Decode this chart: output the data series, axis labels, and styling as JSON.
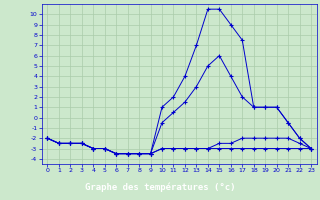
{
  "xlabel": "Graphe des températures (°c)",
  "hours": [
    0,
    1,
    2,
    3,
    4,
    5,
    6,
    7,
    8,
    9,
    10,
    11,
    12,
    13,
    14,
    15,
    16,
    17,
    18,
    19,
    20,
    21,
    22,
    23
  ],
  "line_main": [
    -2,
    -2.5,
    -2.5,
    -2.5,
    -3,
    -3,
    -3.5,
    -3.5,
    -3.5,
    -3.5,
    1,
    2,
    4,
    7,
    10.5,
    10.5,
    9,
    7.5,
    1,
    1,
    1,
    -0.5,
    -2,
    -3
  ],
  "line_upper": [
    -2,
    -2.5,
    -2.5,
    -2.5,
    -3,
    -3,
    -3.5,
    -3.5,
    -3.5,
    -3.5,
    -0.5,
    0.5,
    1.5,
    3,
    5,
    6,
    4,
    2,
    1,
    1,
    1,
    -0.5,
    -2,
    -3
  ],
  "line_lower": [
    -2,
    -2.5,
    -2.5,
    -2.5,
    -3,
    -3,
    -3.5,
    -3.5,
    -3.5,
    -3.5,
    -3,
    -3,
    -3,
    -3,
    -3,
    -3,
    -3,
    -3,
    -3,
    -3,
    -3,
    -3,
    -3,
    -3
  ],
  "line_flat": [
    -2,
    -2.5,
    -2.5,
    -2.5,
    -3,
    -3,
    -3.5,
    -3.5,
    -3.5,
    -3.5,
    -3,
    -3,
    -3,
    -3,
    -3,
    -2.5,
    -2.5,
    -2,
    -2,
    -2,
    -2,
    -2,
    -2.5,
    -3
  ],
  "ylim": [
    -4.5,
    11
  ],
  "xlim": [
    -0.5,
    23.5
  ],
  "yticks": [
    -4,
    -3,
    -2,
    -1,
    0,
    1,
    2,
    3,
    4,
    5,
    6,
    7,
    8,
    9,
    10
  ],
  "xticks": [
    0,
    1,
    2,
    3,
    4,
    5,
    6,
    7,
    8,
    9,
    10,
    11,
    12,
    13,
    14,
    15,
    16,
    17,
    18,
    19,
    20,
    21,
    22,
    23
  ],
  "line_color": "#0000cc",
  "bg_color": "#cce8cc",
  "grid_color": "#aaccaa",
  "xlabel_bg": "#2222aa",
  "xlabel_fg": "#ffffff"
}
